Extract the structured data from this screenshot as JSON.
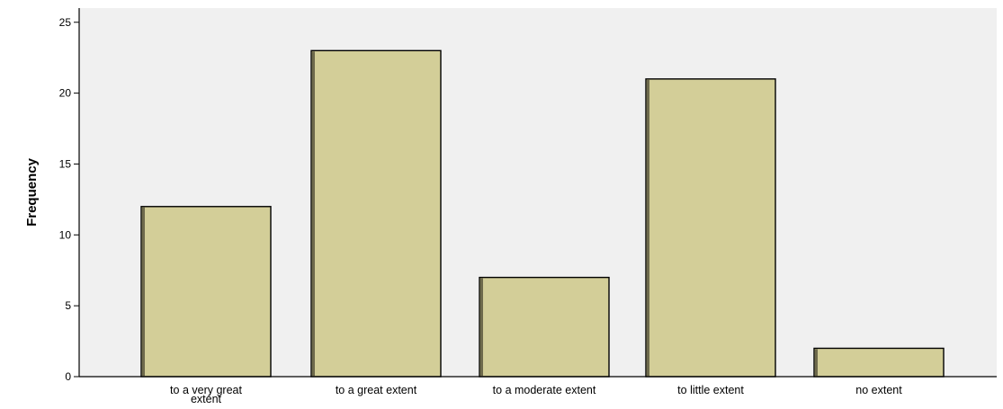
{
  "chart_data": {
    "type": "bar",
    "title": "",
    "xlabel": "",
    "ylabel": "Frequency",
    "ylim": [
      0,
      26
    ],
    "yticks": [
      0,
      5,
      10,
      15,
      20,
      25
    ],
    "categories": [
      [
        "to a very great",
        "extent"
      ],
      [
        "to a great extent"
      ],
      [
        "to a moderate extent"
      ],
      [
        "to little extent"
      ],
      [
        "no extent"
      ]
    ],
    "values": [
      12,
      23,
      7,
      21,
      2
    ],
    "grid": false,
    "legend": "none"
  },
  "colors": {
    "plot_background": "#f0f0f0",
    "bar_fill": "#d3ce98",
    "bar_stroke": "#000000",
    "bar_shadow": "#6e6a4c"
  }
}
